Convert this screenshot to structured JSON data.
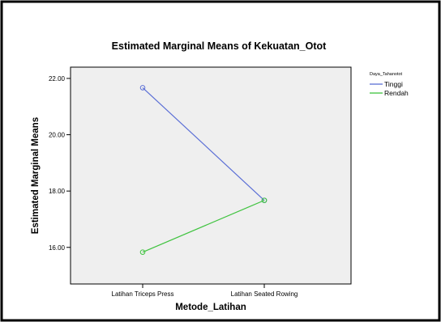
{
  "chart_data": {
    "type": "line",
    "title": "Estimated Marginal Means of Kekuatan_Otot",
    "xlabel": "Metode_Latihan",
    "ylabel": "Estimated Marginal Means",
    "categories": [
      "Latihan Triceps Press",
      "Latihan Seated Rowing"
    ],
    "ylim": [
      14.7,
      22.4
    ],
    "yticks": [
      "16.00",
      "18.00",
      "20.00",
      "22.00"
    ],
    "grid": false,
    "legend_title": "Daya_Tahanotot",
    "legend_position": "top-right, outside plot",
    "series": [
      {
        "name": "Tinggi",
        "color": "#5b6fd6",
        "values": [
          21.67,
          17.67
        ]
      },
      {
        "name": "Rendah",
        "color": "#3fc33f",
        "values": [
          15.83,
          17.67
        ]
      }
    ],
    "plot_background": "#efefef",
    "marker": "open-circle"
  }
}
